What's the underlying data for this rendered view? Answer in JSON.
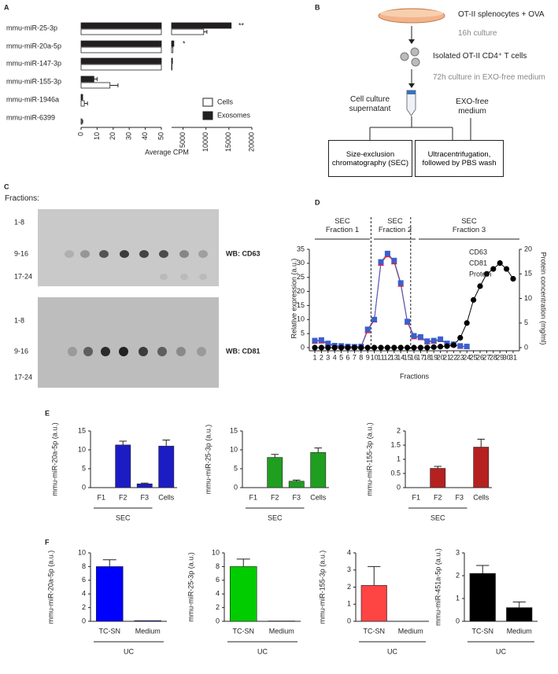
{
  "panel_labels": [
    "A",
    "B",
    "C",
    "D",
    "E",
    "F"
  ],
  "diagram": {
    "start": "OT-II splenocytes + OVA",
    "step1": "16h culture",
    "cells": "Isolated OT-II CD4⁺ T cells",
    "step2": "72h culture in EXO-free medium",
    "supernatant": "Cell culture\nsupernatant",
    "medium": "EXO-free\nmedium",
    "sec": "Size-exclusion chromatography (SEC)",
    "uc": "Ultracentrifugation, followed by PBS wash"
  },
  "blots": {
    "fractions_label": "Fractions:",
    "rows": [
      "1-8",
      "9-16",
      "17-24"
    ],
    "labels": [
      "WB: CD63",
      "WB: CD81"
    ]
  },
  "chart_data": [
    {
      "type": "barh",
      "categories": [
        "mmu-miR-25-3p",
        "mmu-miR-20a-5p",
        "mmu-miR-147-3p",
        "mmu-miR-155-3p",
        "mmu-miR-1946a",
        "mmu-miR-6399"
      ],
      "series": [
        {
          "name": "Cells",
          "color": "#ffffff",
          "values": [
            9500,
            2800,
            2600,
            18,
            2,
            0.5
          ],
          "errors": [
            700,
            null,
            null,
            5,
            2,
            0.5
          ]
        },
        {
          "name": "Exosomes",
          "color": "#231f20",
          "values": [
            15500,
            3000,
            2700,
            8,
            1,
            null
          ],
          "errors": [
            null,
            null,
            null,
            2,
            null,
            null
          ]
        }
      ],
      "annotations": [
        "**",
        "*"
      ],
      "xlim": [
        0,
        50
      ],
      "xticks": [
        0,
        10,
        20,
        30,
        40,
        50
      ],
      "x2lim": [
        2500,
        20000
      ],
      "x2ticks": [
        5000,
        10000,
        15000,
        20000
      ],
      "xlabel": "Average CPM"
    },
    {
      "type": "line",
      "x": [
        1,
        2,
        3,
        4,
        5,
        6,
        7,
        8,
        9,
        10,
        11,
        12,
        13,
        14,
        15,
        16,
        17,
        18,
        19,
        20,
        21,
        22,
        23,
        24,
        25,
        26,
        27,
        28,
        29,
        30,
        31
      ],
      "xlim": [
        0.5,
        31.5
      ],
      "xticks": [
        1,
        2,
        3,
        4,
        5,
        6,
        7,
        8,
        9,
        10,
        11,
        12,
        13,
        14,
        15,
        16,
        17,
        18,
        19,
        20,
        21,
        22,
        23,
        24,
        25,
        26,
        27,
        28,
        29,
        30,
        31
      ],
      "ylim": [
        0,
        35
      ],
      "yticks": [
        0,
        5,
        10,
        15,
        20,
        25,
        30,
        35
      ],
      "y2lim": [
        0,
        20
      ],
      "y2ticks": [
        0,
        5,
        10,
        15,
        20
      ],
      "xlabel": "Fractions",
      "ylabel": "Relative expression (a.u.)",
      "y2label": "Protein concentration (mg/ml)",
      "regions": [
        "SEC\nFraction 1",
        "SEC\nFraction 2",
        "SEC\nFraction 3"
      ],
      "series": [
        {
          "name": "CD63",
          "color": "#e8202a",
          "marker": "triangle",
          "values": [
            2.2,
            2.3,
            1.3,
            0.5,
            0.4,
            0.3,
            0.2,
            0.3,
            6,
            9.8,
            30,
            33,
            30.5,
            22.5,
            9,
            3.8,
            3.5,
            2,
            2.2,
            2.8,
            1.3,
            1,
            0.4,
            0.3,
            null,
            null,
            null,
            null,
            null,
            null,
            null
          ]
        },
        {
          "name": "CD81",
          "color": "#3a5fcd",
          "marker": "square",
          "values": [
            2.5,
            2.7,
            1.5,
            0.7,
            0.6,
            0.4,
            0.3,
            0.4,
            6.5,
            10,
            30.5,
            33.5,
            31,
            23,
            9.3,
            4.2,
            3.8,
            2.3,
            2.5,
            3,
            1.5,
            1.2,
            0.6,
            0.4,
            null,
            null,
            null,
            null,
            null,
            null,
            null
          ]
        },
        {
          "name": "Protein",
          "color": "#000000",
          "marker": "circle",
          "axis": "y2",
          "values": [
            0,
            0,
            0,
            0,
            0,
            0,
            0,
            0,
            0,
            0,
            0,
            0,
            0,
            0,
            0,
            0,
            0,
            0,
            0.1,
            0.2,
            0.3,
            0.5,
            2,
            5,
            9.7,
            12.5,
            15,
            16,
            17.2,
            16,
            14
          ]
        }
      ]
    },
    {
      "type": "bar",
      "ylabel": "mmu-miR-20a-5p (a.u.)",
      "categories": [
        "F1",
        "F2",
        "F3",
        "Cells"
      ],
      "values": [
        0,
        11.3,
        1,
        11
      ],
      "errors": [
        null,
        1,
        0.2,
        1.6
      ],
      "color": "#1c1cc4",
      "ylim": [
        0,
        15
      ],
      "yticks": [
        0,
        5,
        10,
        15
      ],
      "group_label": "SEC"
    },
    {
      "type": "bar",
      "ylabel": "mmu-miR-25-3p (a.u.)",
      "categories": [
        "F1",
        "F2",
        "F3",
        "Cells"
      ],
      "values": [
        0,
        8,
        1.7,
        9.3
      ],
      "errors": [
        null,
        0.8,
        0.3,
        1.2
      ],
      "color": "#1f9e1f",
      "ylim": [
        0,
        15
      ],
      "yticks": [
        0,
        5,
        10,
        15
      ],
      "group_label": "SEC"
    },
    {
      "type": "bar",
      "ylabel": "mmu-miR-155-3p (a.u.)",
      "categories": [
        "F1",
        "F2",
        "F3",
        "Cells"
      ],
      "values": [
        0,
        0.68,
        0,
        1.43
      ],
      "errors": [
        null,
        0.07,
        null,
        0.28
      ],
      "color": "#b52020",
      "ylim": [
        0,
        2
      ],
      "yticks": [
        0,
        0.5,
        1,
        1.5,
        2
      ],
      "group_label": "SEC"
    },
    {
      "type": "bar",
      "ylabel": "mmu-miR-20a-5p (a.u.)",
      "categories": [
        "TC-SN",
        "Medium"
      ],
      "values": [
        8,
        0.1
      ],
      "errors": [
        1,
        null
      ],
      "color": "#0000ff",
      "ylim": [
        0,
        10
      ],
      "yticks": [
        0,
        2,
        4,
        6,
        8,
        10
      ],
      "group_label": "UC"
    },
    {
      "type": "bar",
      "ylabel": "mmu-miR-25-3p (a.u.)",
      "categories": [
        "TC-SN",
        "Medium"
      ],
      "values": [
        8,
        0.05
      ],
      "errors": [
        1.1,
        null
      ],
      "color": "#00cc00",
      "ylim": [
        0,
        10
      ],
      "yticks": [
        0,
        2,
        4,
        6,
        8,
        10
      ],
      "group_label": "UC"
    },
    {
      "type": "bar",
      "ylabel": "mmu-miR-155-3p (a.u.)",
      "categories": [
        "TC-SN",
        "Medium"
      ],
      "values": [
        2.1,
        0
      ],
      "errors": [
        1.1,
        null
      ],
      "color": "#ff4444",
      "ylim": [
        0,
        4
      ],
      "yticks": [
        0,
        1,
        2,
        3,
        4
      ],
      "group_label": "UC"
    },
    {
      "type": "bar",
      "ylabel": "mmu-miR-451a-5p (a.u.)",
      "categories": [
        "TC-SN",
        "Medium"
      ],
      "values": [
        2.1,
        0.6
      ],
      "errors": [
        0.35,
        0.25
      ],
      "color": "#000000",
      "ylim": [
        0,
        3
      ],
      "yticks": [
        0,
        1,
        2,
        3
      ],
      "group_label": "UC"
    }
  ]
}
